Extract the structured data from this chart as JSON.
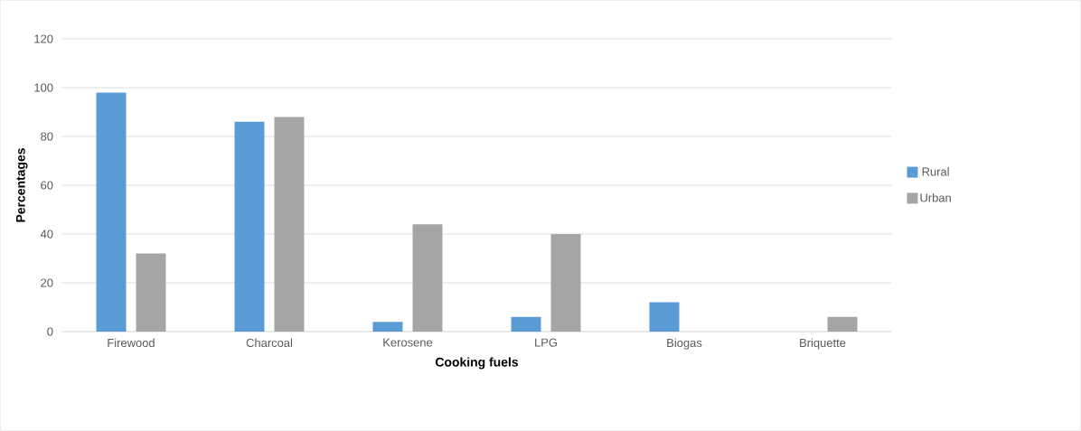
{
  "chart_data": {
    "type": "bar",
    "xlabel": "Cooking fuels",
    "ylabel": "Percentages",
    "categories": [
      "Firewood",
      "Charcoal",
      "Kerosene",
      "LPG",
      "Biogas",
      "Briquette"
    ],
    "series": [
      {
        "name": "Rural",
        "color": "#5b9bd5",
        "values": [
          98,
          86,
          4,
          6,
          12,
          0
        ]
      },
      {
        "name": "Urban",
        "color": "#a5a5a5",
        "values": [
          32,
          88,
          44,
          40,
          0,
          6
        ]
      }
    ],
    "ylim": [
      0,
      120
    ],
    "yticks": [
      0,
      20,
      40,
      60,
      80,
      100,
      120
    ],
    "grid": "y",
    "legend": "right"
  }
}
